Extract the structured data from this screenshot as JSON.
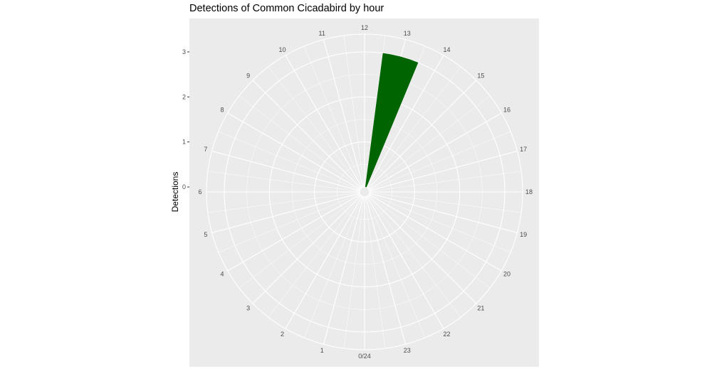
{
  "chart_data": {
    "type": "bar",
    "coord": "polar",
    "title": "Detections of Common Cicadabird by hour",
    "ylabel": "Detections",
    "xlabel": "",
    "categories": [
      "0/24",
      "1",
      "2",
      "3",
      "4",
      "5",
      "6",
      "7",
      "8",
      "9",
      "10",
      "11",
      "12",
      "13",
      "14",
      "15",
      "16",
      "17",
      "18",
      "19",
      "20",
      "21",
      "22",
      "23"
    ],
    "values": [
      0,
      0,
      0,
      0,
      0,
      0,
      0,
      0,
      0,
      0,
      0,
      0,
      0,
      3,
      0,
      0,
      0,
      0,
      0,
      0,
      0,
      0,
      0,
      0
    ],
    "y_ticks": [
      "0",
      "1",
      "2",
      "3"
    ],
    "ylim": [
      0,
      3
    ],
    "bar_color": "#006400",
    "panel_color": "#ebebeb",
    "grid_color": "#ffffff",
    "grid": true
  }
}
